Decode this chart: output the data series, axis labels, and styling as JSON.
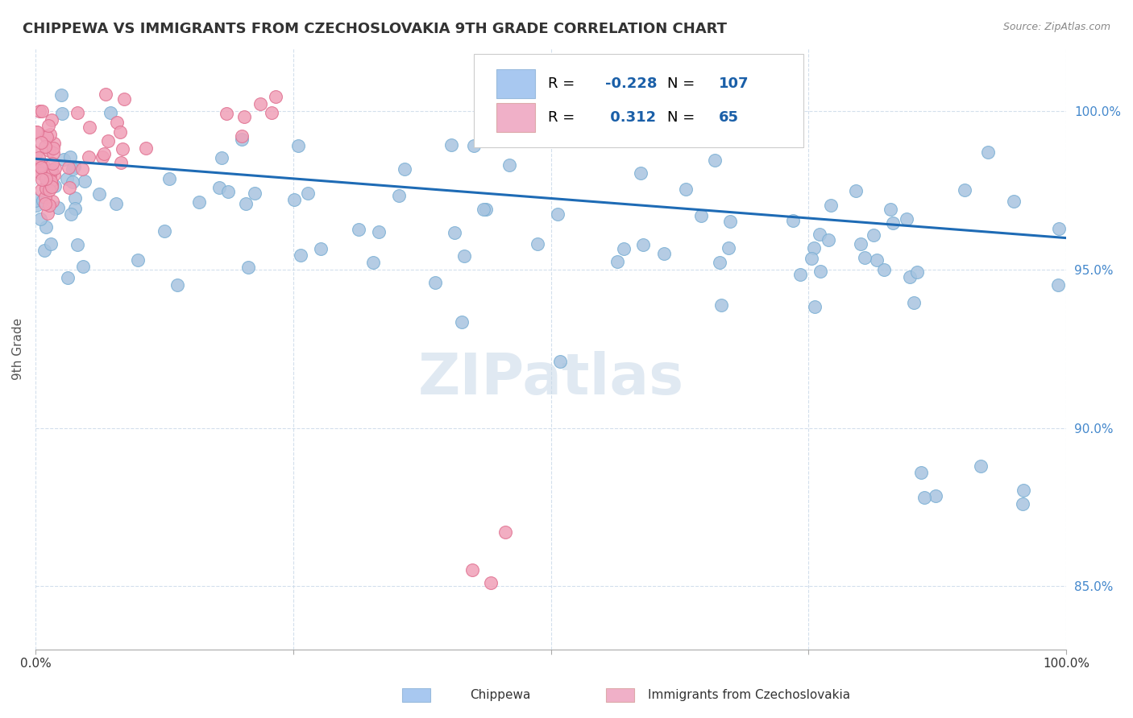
{
  "title": "CHIPPEWA VS IMMIGRANTS FROM CZECHOSLOVAKIA 9TH GRADE CORRELATION CHART",
  "source": "Source: ZipAtlas.com",
  "ylabel": "9th Grade",
  "xlim": [
    0,
    100
  ],
  "ylim": [
    83,
    102
  ],
  "ytick_vals": [
    85.0,
    90.0,
    95.0,
    100.0
  ],
  "ytick_labels": [
    "85.0%",
    "90.0%",
    "95.0%",
    "100.0%"
  ],
  "xtick_vals": [
    0,
    25,
    50,
    75,
    100
  ],
  "xtick_labels": [
    "0.0%",
    "",
    "",
    "",
    "100.0%"
  ],
  "blue_color": "#a8c4e0",
  "blue_edge": "#7aafd4",
  "pink_color": "#f0a0b8",
  "pink_edge": "#e07090",
  "trend_blue": "#1e6bb5",
  "legend_box_blue": "#a8c8f0",
  "legend_box_pink": "#f0b0c8",
  "watermark_color": "#c8d8e8",
  "R_blue": -0.228,
  "N_blue": 107,
  "R_pink": 0.312,
  "N_pink": 65
}
